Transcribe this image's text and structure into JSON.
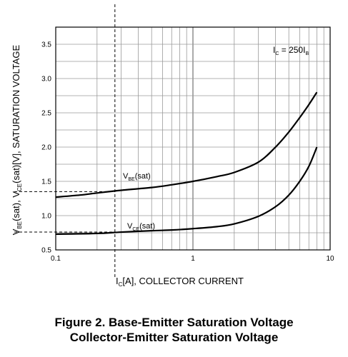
{
  "chart_data": {
    "type": "line",
    "xscale": "log",
    "xlim": [
      0.1,
      10
    ],
    "ylim": [
      0.5,
      3.75
    ],
    "grid": true,
    "x_ticks": [
      "0.1",
      "1",
      "10"
    ],
    "y_ticks": [
      "0.5",
      "1.0",
      "1.5",
      "2.0",
      "2.5",
      "3.0",
      "3.5"
    ],
    "xlabel": "I_C[A], COLLECTOR CURRENT",
    "ylabel": "V_BE(sat), V_CE(sat)[V], SATURATION VOLTAGE",
    "annotation": "I_C = 250 I_B",
    "series": [
      {
        "name": "V_BE(sat)",
        "x": [
          0.1,
          0.15,
          0.2,
          0.3,
          0.5,
          0.7,
          1,
          1.5,
          2,
          3,
          4,
          5,
          6,
          7,
          8
        ],
        "y": [
          1.27,
          1.3,
          1.33,
          1.37,
          1.41,
          1.45,
          1.5,
          1.57,
          1.63,
          1.78,
          2.0,
          2.22,
          2.43,
          2.62,
          2.8
        ]
      },
      {
        "name": "V_CE(sat)",
        "x": [
          0.1,
          0.2,
          0.3,
          0.5,
          0.7,
          1,
          1.5,
          2,
          3,
          4,
          5,
          6,
          7,
          8
        ],
        "y": [
          0.73,
          0.74,
          0.76,
          0.78,
          0.79,
          0.81,
          0.84,
          0.88,
          0.99,
          1.13,
          1.3,
          1.5,
          1.72,
          2.0
        ]
      }
    ],
    "reference_lines": {
      "x": 0.27,
      "y": [
        1.35,
        0.76
      ]
    }
  },
  "text": {
    "annotation_ic": "I",
    "annotation_ic_sub": "C",
    "annotation_mid": " = 250I",
    "annotation_ib_sub": "B",
    "vbe_main": "V",
    "vbe_sub": "BE",
    "vbe_rest": "(sat)",
    "vce_main": "V",
    "vce_sub": "CE",
    "vce_rest": "(sat)",
    "xlabel_main": "I",
    "xlabel_sub": "C",
    "xlabel_rest": "[A], COLLECTOR CURRENT",
    "ylabel_a": "V",
    "ylabel_a_sub": "BE",
    "ylabel_b": "(sat), V",
    "ylabel_b_sub": "CE",
    "ylabel_c": "(sat)[V], SATURATION VOLTAGE",
    "caption_line1": "Figure 2. Base-Emitter Saturation Voltage",
    "caption_line2": "Collector-Emitter Saturation Voltage"
  }
}
